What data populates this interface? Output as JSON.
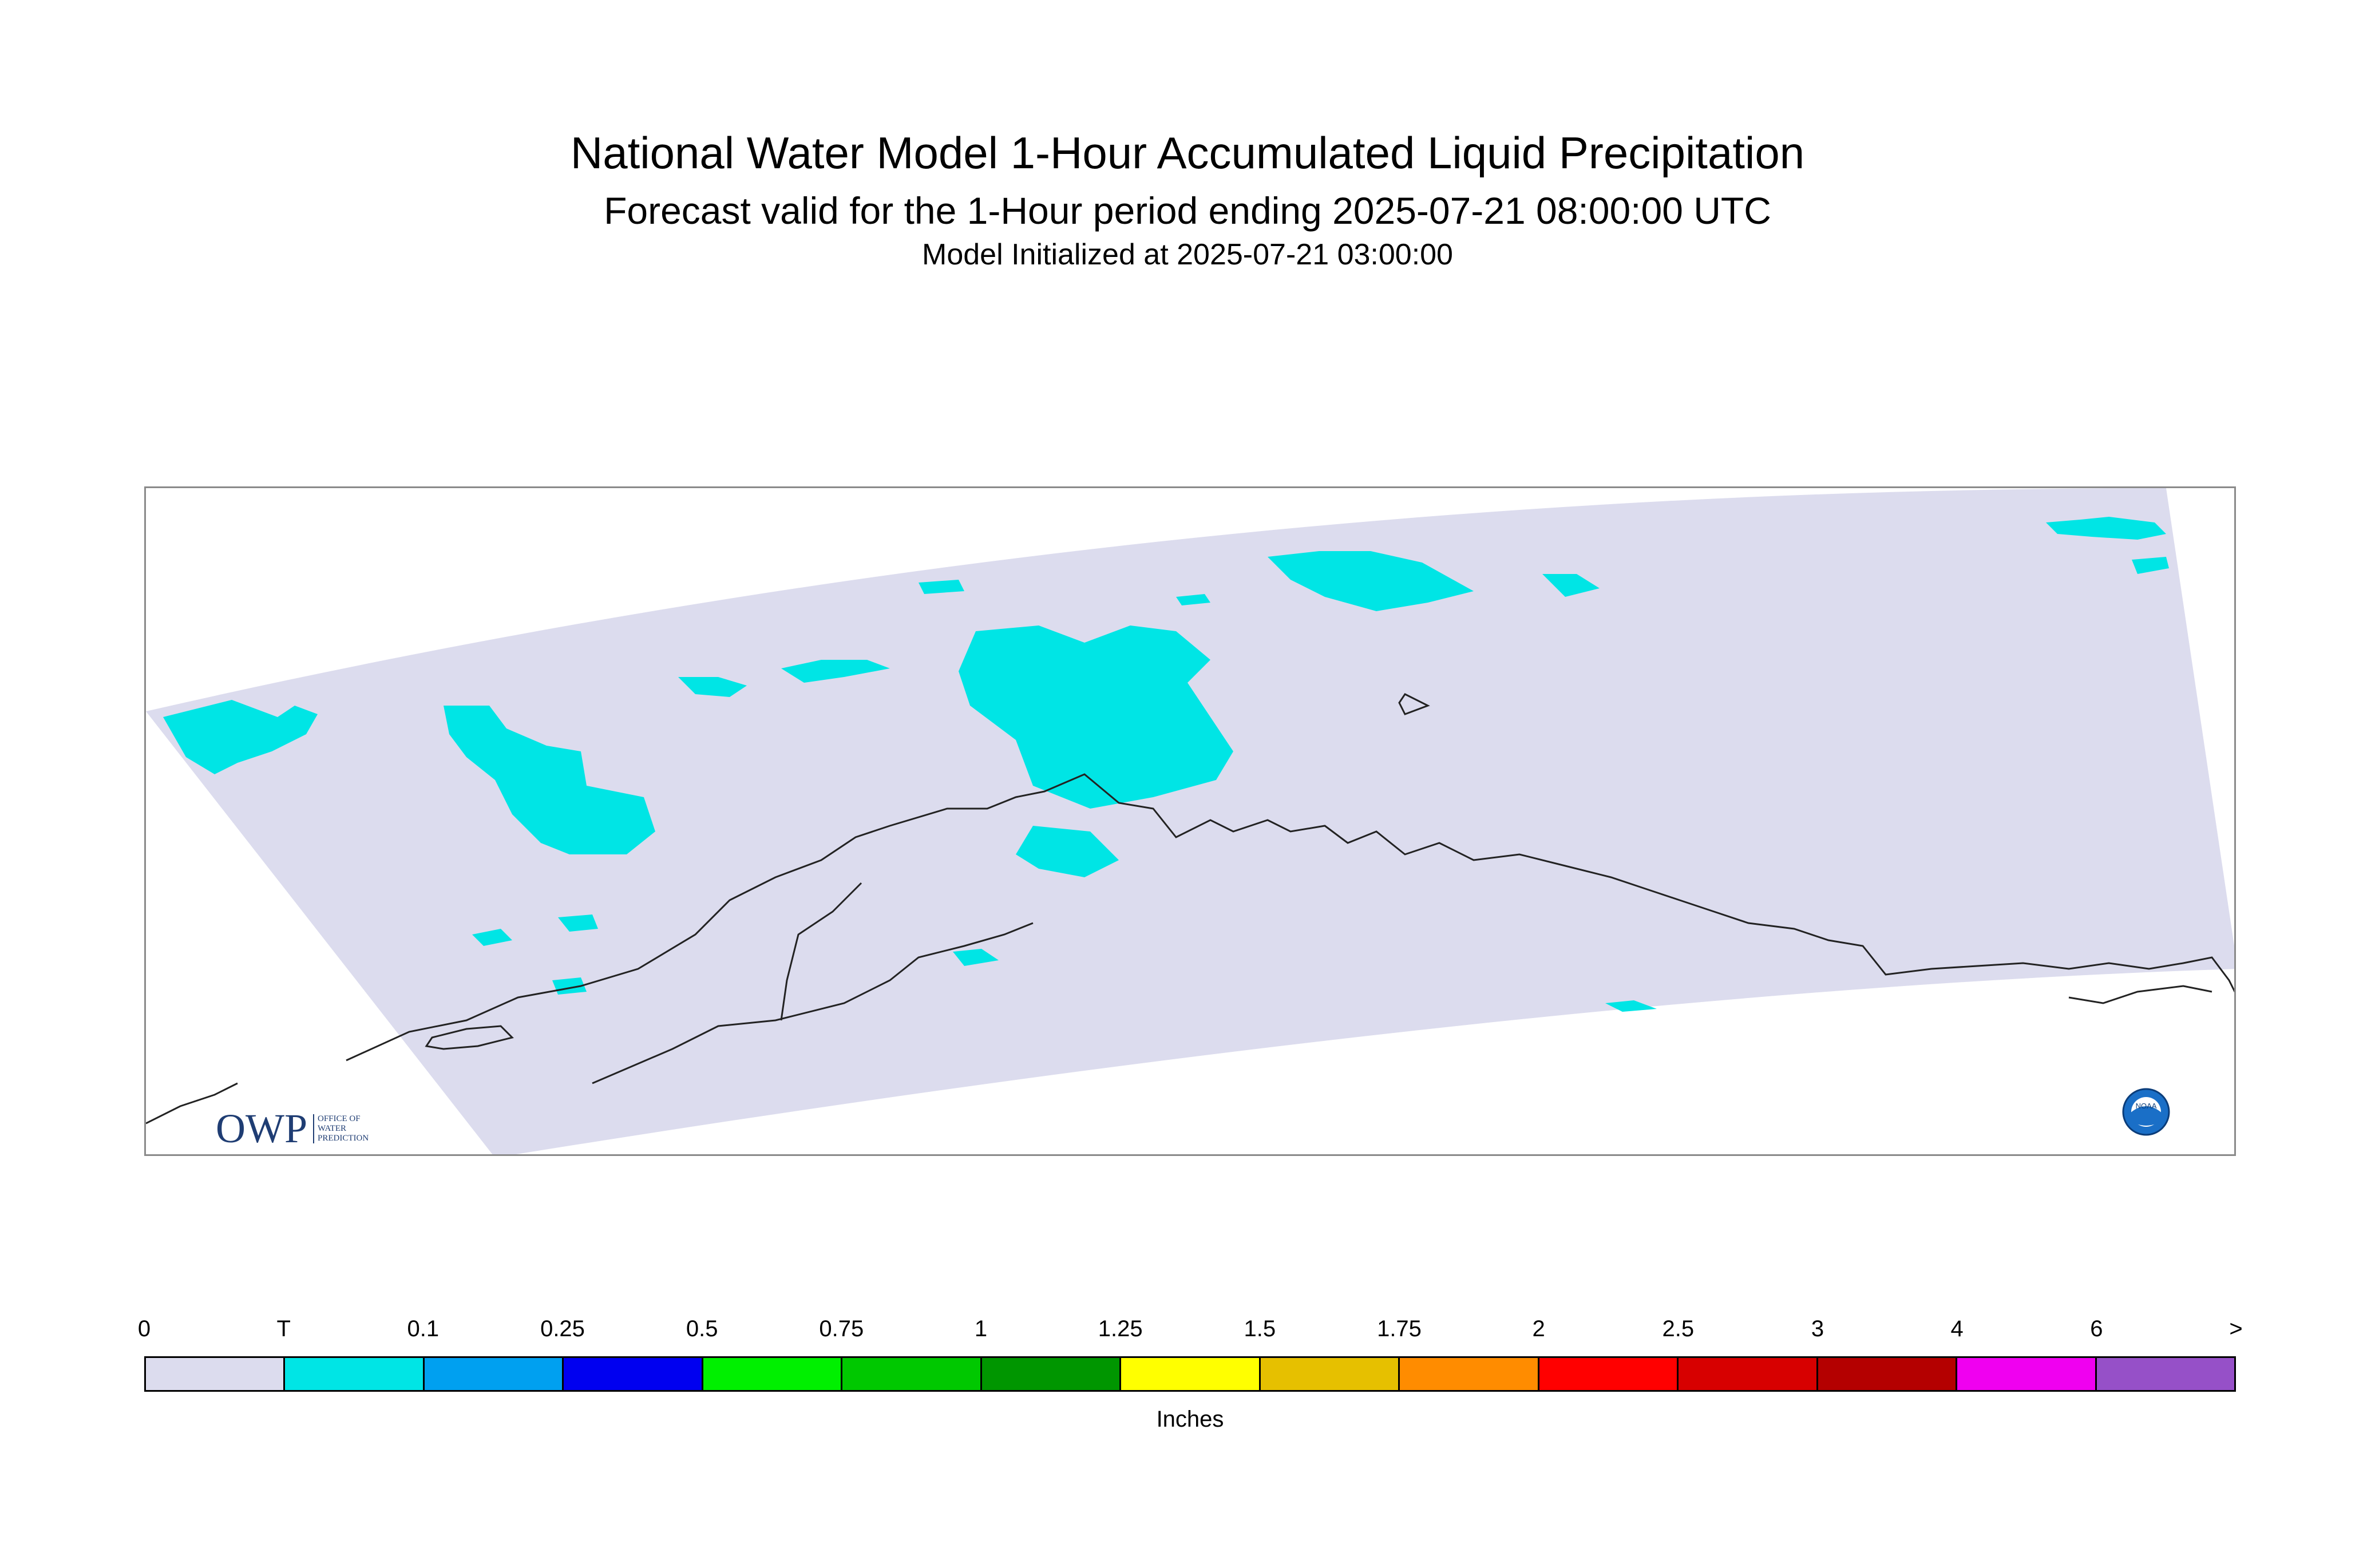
{
  "title": "National Water Model 1-Hour Accumulated Liquid Precipitation",
  "subtitle": "Forecast valid for the 1-Hour period ending 2025-07-21 08:00:00 UTC",
  "initialized": "Model Initialized at 2025-07-21 03:00:00",
  "logos": {
    "owp_mark": "OWP",
    "owp_text": [
      "OFFICE OF",
      "WATER",
      "PREDICTION"
    ],
    "noaa_text": "NOAA"
  },
  "legend": {
    "units": "Inches",
    "ticks": [
      "0",
      "T",
      "0.1",
      "0.25",
      "0.5",
      "0.75",
      "1",
      "1.25",
      "1.5",
      "1.75",
      "2",
      "2.5",
      "3",
      "4",
      "6",
      ">"
    ],
    "colors": [
      "#dcdcee",
      "#00e5e5",
      "#00a0f0",
      "#0000f0",
      "#00f000",
      "#00c800",
      "#009600",
      "#ffff00",
      "#e6c000",
      "#ff8c00",
      "#ff0000",
      "#d70000",
      "#b40000",
      "#f000f0",
      "#9650c8"
    ]
  },
  "map": {
    "domain_color": "#dcdcee",
    "precip_color": "#00e5e5",
    "coastline_color": "#222222"
  }
}
